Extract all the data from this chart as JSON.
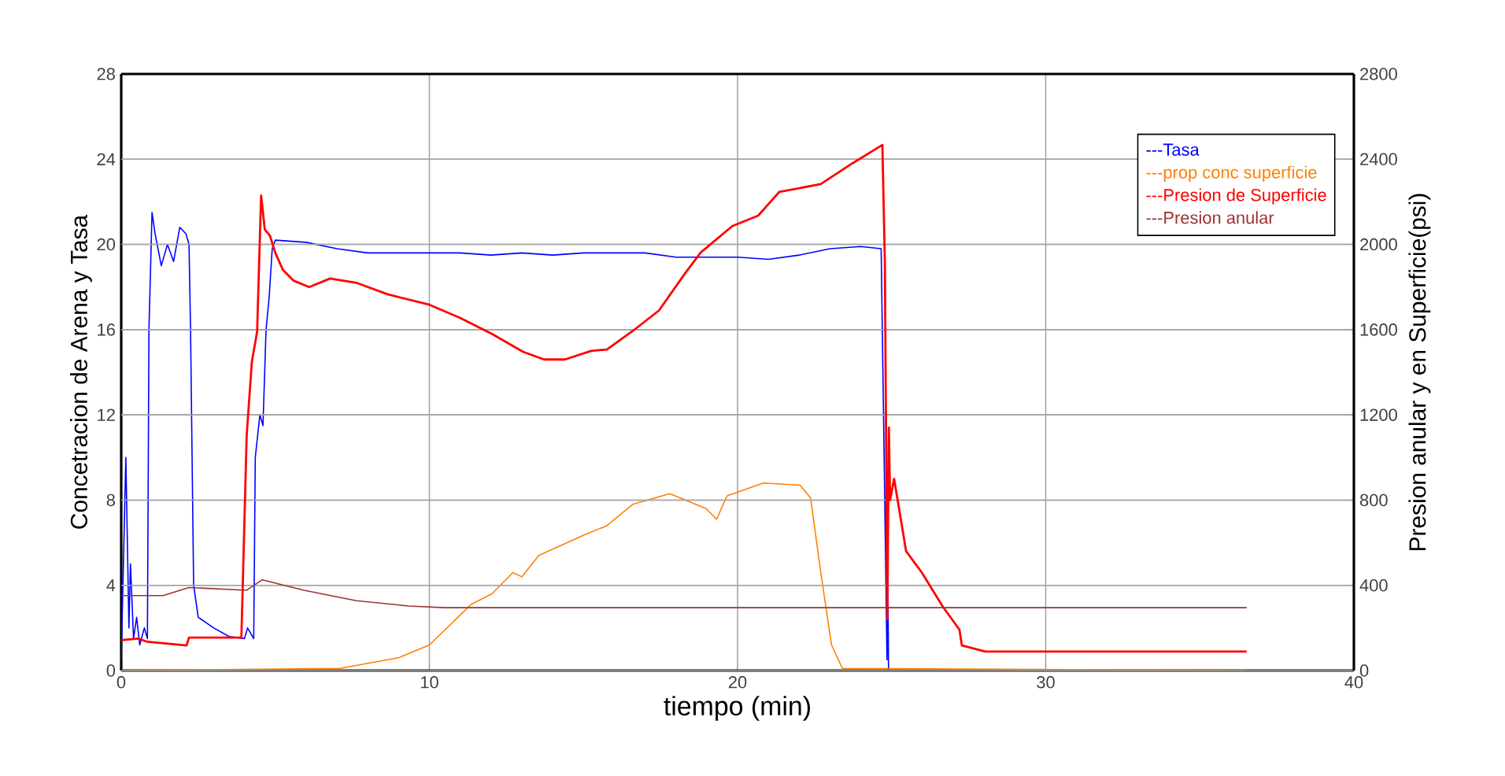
{
  "chart_data": {
    "type": "line",
    "xlabel": "tiempo (min)",
    "ylabel": "Concetracion de Arena y Tasa",
    "y2label": "Presion anular y en Superficie(psi)",
    "xlim": [
      0,
      40
    ],
    "xticks": [
      0,
      10,
      20,
      30,
      40
    ],
    "ylim": [
      0,
      28
    ],
    "yticks": [
      0,
      4,
      8,
      12,
      16,
      20,
      24,
      28
    ],
    "y2lim": [
      0,
      2800
    ],
    "y2ticks": [
      0,
      400,
      800,
      1200,
      1600,
      2000,
      2400,
      2800
    ],
    "grid": true,
    "legend": "top right",
    "series": [
      {
        "name": "---Tasa",
        "color": "#0000ff",
        "x": [
          0,
          0.15,
          0.25,
          0.3,
          0.4,
          0.5,
          0.6,
          0.75,
          0.85,
          0.9,
          1.0,
          1.1,
          1.3,
          1.5,
          1.7,
          1.9,
          2.1,
          2.2,
          2.25,
          2.35,
          2.5,
          3,
          3.5,
          4,
          4.1,
          4.3,
          4.35,
          4.5,
          4.6,
          4.7,
          4.8,
          4.9,
          5,
          6,
          7,
          8,
          9,
          10,
          11,
          12,
          13,
          14,
          15,
          16,
          17,
          18,
          19,
          20,
          21,
          22,
          23,
          24,
          24.66,
          24.85,
          24.88,
          24.9,
          25
        ],
        "values": [
          0.5,
          10,
          2,
          5,
          1.5,
          2.5,
          1.2,
          2,
          1.5,
          16,
          21.5,
          20.5,
          19,
          20,
          19.2,
          20.8,
          20.5,
          20,
          16,
          4,
          2.5,
          2,
          1.6,
          1.5,
          2,
          1.5,
          10,
          12,
          11.5,
          16,
          17.5,
          19.8,
          20.2,
          20.1,
          19.8,
          19.6,
          19.6,
          19.6,
          19.6,
          19.5,
          19.6,
          19.5,
          19.6,
          19.6,
          19.6,
          19.4,
          19.4,
          19.4,
          19.3,
          19.5,
          19.8,
          19.9,
          19.8,
          0.5,
          4,
          0,
          0
        ]
      },
      {
        "name": "---prop conc superficie",
        "color": "#ff8000",
        "x": [
          0,
          7.1,
          9,
          10,
          11.35,
          12.03,
          12.71,
          13.0,
          13.55,
          15.08,
          15.76,
          16.6,
          17.8,
          18.98,
          19.32,
          19.66,
          20.84,
          22.03,
          22.37,
          22.7,
          23.05,
          23.4,
          36.5
        ],
        "values": [
          0,
          0.1,
          0.6,
          1.2,
          3.1,
          3.6,
          4.6,
          4.4,
          5.4,
          6.4,
          6.8,
          7.8,
          8.3,
          7.6,
          7.1,
          8.2,
          8.8,
          8.7,
          8.1,
          4.6,
          1.2,
          0.1,
          0
        ]
      },
      {
        "name": "---Presion de Superficie",
        "color": "#ff0000",
        "axis": "y2",
        "x": [
          0,
          0.55,
          0.85,
          2.12,
          2.2,
          3.9,
          4.07,
          4.24,
          4.41,
          4.54,
          4.66,
          4.83,
          5.0,
          5.25,
          5.59,
          6.1,
          6.78,
          7.63,
          8.64,
          10,
          11.0,
          12.03,
          13.04,
          13.72,
          14.4,
          15.25,
          15.76,
          16.6,
          17.45,
          18.3,
          18.81,
          19.83,
          20.67,
          21.35,
          22.7,
          23.72,
          24.7,
          24.78,
          24.86,
          24.91,
          24.95,
          25.08,
          25.47,
          25.98,
          26.66,
          27.2,
          27.28,
          28.04,
          36.52
        ],
        "values": [
          143,
          150,
          135,
          118,
          155,
          155,
          1100,
          1450,
          1590,
          2230,
          2070,
          2040,
          1960,
          1880,
          1830,
          1800,
          1840,
          1820,
          1766,
          1717,
          1655,
          1580,
          1496,
          1460,
          1460,
          1500,
          1507,
          1594,
          1690,
          1865,
          1963,
          2086,
          2135,
          2246,
          2283,
          2380,
          2467,
          1920,
          241,
          1140,
          800,
          900,
          560,
          460,
          300,
          192,
          118,
          89,
          89
        ]
      },
      {
        "name": "---Presion anular",
        "color": "#993333",
        "axis": "y2",
        "x": [
          0,
          1.36,
          2.2,
          4.07,
          4.58,
          5.93,
          7.63,
          9.32,
          10.5,
          36.52
        ],
        "values": [
          352,
          352,
          390,
          377,
          426,
          377,
          328,
          303,
          295,
          295
        ]
      }
    ]
  }
}
